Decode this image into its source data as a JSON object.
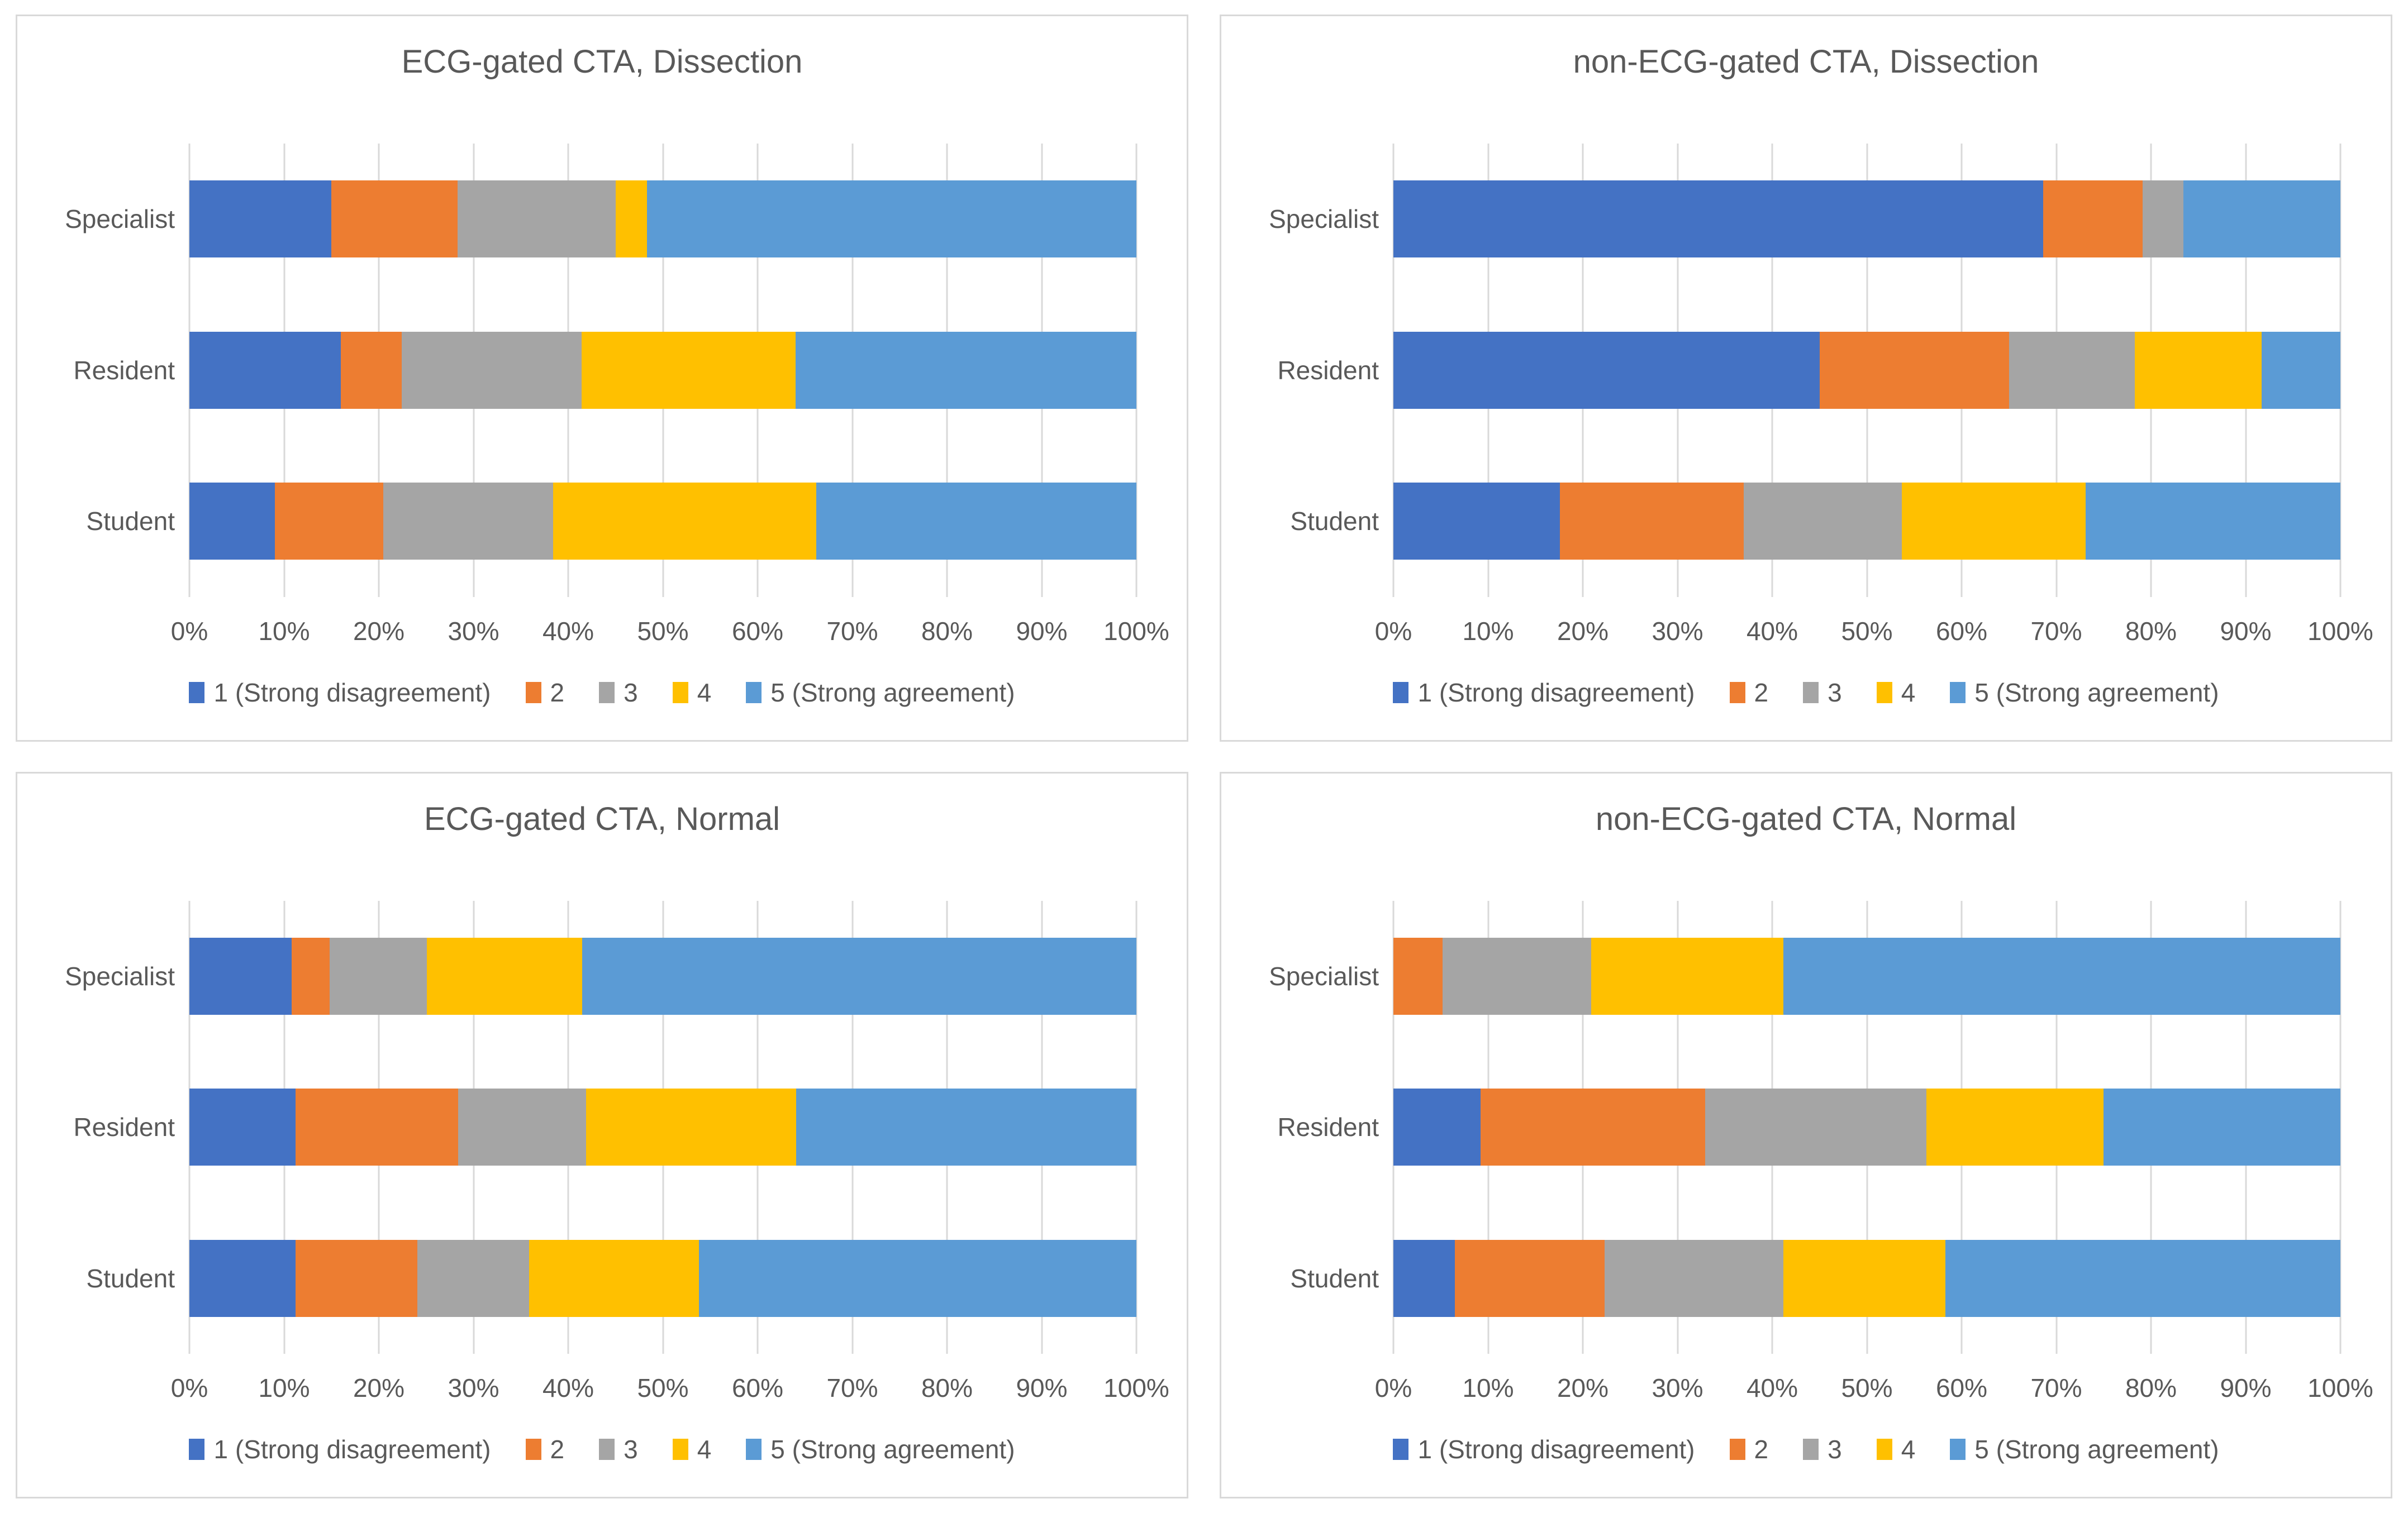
{
  "figure": {
    "layout": "2x2 grid of stacked horizontal bar charts",
    "background": "#FFFFFF",
    "panel_border_color": "#D9D9D9",
    "gridline_color": "#D9D9D9",
    "text_color": "#595959"
  },
  "chart_data": [
    {
      "type": "bar",
      "orientation": "horizontal",
      "stacked": true,
      "title": "ECG-gated CTA, Dissection",
      "categories": [
        "Specialist",
        "Resident",
        "Student"
      ],
      "series": [
        {
          "name": "1 (Strong disagreement)",
          "color": "#4472C4",
          "values": [
            15.0,
            16.0,
            9.0
          ]
        },
        {
          "name": "2",
          "color": "#ED7D31",
          "values": [
            13.3,
            6.4,
            11.5
          ]
        },
        {
          "name": "3",
          "color": "#A5A5A5",
          "values": [
            16.7,
            19.0,
            17.9
          ]
        },
        {
          "name": "4",
          "color": "#FFC000",
          "values": [
            3.3,
            22.6,
            27.8
          ]
        },
        {
          "name": "5 (Strong agreement)",
          "color": "#5B9BD5",
          "values": [
            51.7,
            36.0,
            33.8
          ]
        }
      ],
      "xlim": [
        0,
        100
      ],
      "x_tick_labels": [
        "0%",
        "10%",
        "20%",
        "30%",
        "40%",
        "50%",
        "60%",
        "70%",
        "80%",
        "90%",
        "100%"
      ],
      "grid": true,
      "legend_position": "bottom"
    },
    {
      "type": "bar",
      "orientation": "horizontal",
      "stacked": true,
      "title": "non-ECG-gated CTA, Dissection",
      "categories": [
        "Specialist",
        "Resident",
        "Student"
      ],
      "series": [
        {
          "name": "1 (Strong disagreement)",
          "color": "#4472C4",
          "values": [
            68.6,
            45.0,
            17.6
          ]
        },
        {
          "name": "2",
          "color": "#ED7D31",
          "values": [
            10.5,
            20.0,
            19.4
          ]
        },
        {
          "name": "3",
          "color": "#A5A5A5",
          "values": [
            4.3,
            13.3,
            16.7
          ]
        },
        {
          "name": "4",
          "color": "#FFC000",
          "values": [
            0.0,
            13.4,
            19.4
          ]
        },
        {
          "name": "5 (Strong agreement)",
          "color": "#5B9BD5",
          "values": [
            16.6,
            8.3,
            26.9
          ]
        }
      ],
      "xlim": [
        0,
        100
      ],
      "x_tick_labels": [
        "0%",
        "10%",
        "20%",
        "30%",
        "40%",
        "50%",
        "60%",
        "70%",
        "80%",
        "90%",
        "100%"
      ],
      "grid": true,
      "legend_position": "bottom"
    },
    {
      "type": "bar",
      "orientation": "horizontal",
      "stacked": true,
      "title": "ECG-gated CTA, Normal",
      "categories": [
        "Specialist",
        "Resident",
        "Student"
      ],
      "series": [
        {
          "name": "1 (Strong disagreement)",
          "color": "#4472C4",
          "values": [
            10.8,
            11.2,
            11.2
          ]
        },
        {
          "name": "2",
          "color": "#ED7D31",
          "values": [
            4.0,
            17.2,
            12.9
          ]
        },
        {
          "name": "3",
          "color": "#A5A5A5",
          "values": [
            10.3,
            13.5,
            11.8
          ]
        },
        {
          "name": "4",
          "color": "#FFC000",
          "values": [
            16.4,
            22.2,
            17.9
          ]
        },
        {
          "name": "5 (Strong agreement)",
          "color": "#5B9BD5",
          "values": [
            58.5,
            35.9,
            46.2
          ]
        }
      ],
      "xlim": [
        0,
        100
      ],
      "x_tick_labels": [
        "0%",
        "10%",
        "20%",
        "30%",
        "40%",
        "50%",
        "60%",
        "70%",
        "80%",
        "90%",
        "100%"
      ],
      "grid": true,
      "legend_position": "bottom"
    },
    {
      "type": "bar",
      "orientation": "horizontal",
      "stacked": true,
      "title": "non-ECG-gated CTA, Normal",
      "categories": [
        "Specialist",
        "Resident",
        "Student"
      ],
      "series": [
        {
          "name": "1 (Strong disagreement)",
          "color": "#4472C4",
          "values": [
            0.0,
            9.2,
            6.5
          ]
        },
        {
          "name": "2",
          "color": "#ED7D31",
          "values": [
            5.2,
            23.7,
            15.8
          ]
        },
        {
          "name": "3",
          "color": "#A5A5A5",
          "values": [
            15.7,
            23.4,
            18.9
          ]
        },
        {
          "name": "4",
          "color": "#FFC000",
          "values": [
            20.3,
            18.7,
            17.1
          ]
        },
        {
          "name": "5 (Strong agreement)",
          "color": "#5B9BD5",
          "values": [
            58.8,
            25.0,
            41.7
          ]
        }
      ],
      "xlim": [
        0,
        100
      ],
      "x_tick_labels": [
        "0%",
        "10%",
        "20%",
        "30%",
        "40%",
        "50%",
        "60%",
        "70%",
        "80%",
        "90%",
        "100%"
      ],
      "grid": true,
      "legend_position": "bottom"
    }
  ]
}
